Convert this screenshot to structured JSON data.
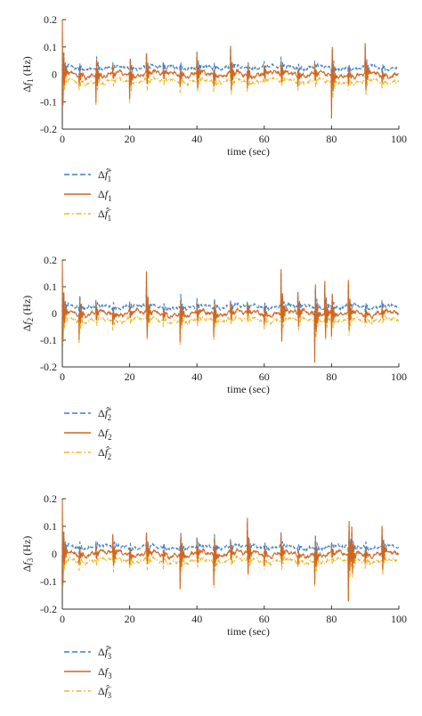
{
  "colors": {
    "upper": "#3f7fc6",
    "mid": "#d0661f",
    "lower": "#f0b522",
    "axis": "#333333"
  },
  "chart_data": [
    {
      "type": "line",
      "xlabel": "time (sec)",
      "ylabel_sub": "1",
      "x_ticks": [
        "0",
        "20",
        "40",
        "60",
        "80",
        "100"
      ],
      "y_ticks": [
        "0.2",
        "0.1",
        "0",
        "-0.1",
        "-0.2"
      ],
      "xlim": [
        0,
        100
      ],
      "ylim": [
        -0.2,
        0.2
      ],
      "grid": false,
      "legend_position": "below",
      "legend": [
        {
          "style": "dashed",
          "color": "upper",
          "sub": "1",
          "sup": "+"
        },
        {
          "style": "solid",
          "color": "mid",
          "sub": "1",
          "sup": ""
        },
        {
          "style": "dashdot",
          "color": "lower",
          "sub": "1",
          "sup": "−"
        }
      ],
      "baselines": {
        "upper": 0.025,
        "mid": 0.0,
        "lower": -0.025
      },
      "events": [
        {
          "t": 0,
          "amp": 0.19
        },
        {
          "t": 5,
          "amp": -0.04
        },
        {
          "t": 10,
          "amp": -0.1
        },
        {
          "t": 15,
          "amp": 0.03
        },
        {
          "t": 20,
          "amp": -0.09
        },
        {
          "t": 25,
          "amp": 0.07
        },
        {
          "t": 30,
          "amp": 0.03
        },
        {
          "t": 35,
          "amp": -0.04
        },
        {
          "t": 40,
          "amp": 0.08
        },
        {
          "t": 45,
          "amp": -0.04
        },
        {
          "t": 50,
          "amp": 0.1
        },
        {
          "t": 55,
          "amp": -0.05
        },
        {
          "t": 60,
          "amp": 0.03
        },
        {
          "t": 65,
          "amp": 0.05
        },
        {
          "t": 70,
          "amp": -0.04
        },
        {
          "t": 75,
          "amp": 0.04
        },
        {
          "t": 80,
          "amp": -0.16
        },
        {
          "t": 85,
          "amp": -0.04
        },
        {
          "t": 90,
          "amp": 0.11
        },
        {
          "t": 95,
          "amp": -0.03
        }
      ]
    },
    {
      "type": "line",
      "xlabel": "time (sec)",
      "ylabel_sub": "2",
      "x_ticks": [
        "0",
        "20",
        "40",
        "60",
        "80",
        "100"
      ],
      "y_ticks": [
        "0.2",
        "0.1",
        "0",
        "-0.1",
        "-0.2"
      ],
      "xlim": [
        0,
        100
      ],
      "ylim": [
        -0.2,
        0.2
      ],
      "grid": false,
      "legend_position": "below",
      "legend": [
        {
          "style": "dashed",
          "color": "upper",
          "sub": "2",
          "sup": "+"
        },
        {
          "style": "solid",
          "color": "mid",
          "sub": "2",
          "sup": ""
        },
        {
          "style": "dashdot",
          "color": "lower",
          "sub": "2",
          "sup": "−"
        }
      ],
      "baselines": {
        "upper": 0.025,
        "mid": 0.0,
        "lower": -0.025
      },
      "events": [
        {
          "t": 0,
          "amp": 0.19
        },
        {
          "t": 5,
          "amp": -0.1
        },
        {
          "t": 10,
          "amp": 0.04
        },
        {
          "t": 15,
          "amp": -0.04
        },
        {
          "t": 20,
          "amp": 0.03
        },
        {
          "t": 25,
          "amp": 0.15
        },
        {
          "t": 30,
          "amp": -0.03
        },
        {
          "t": 35,
          "amp": -0.1
        },
        {
          "t": 40,
          "amp": 0.04
        },
        {
          "t": 45,
          "amp": -0.08
        },
        {
          "t": 50,
          "amp": 0.04
        },
        {
          "t": 55,
          "amp": 0.03
        },
        {
          "t": 60,
          "amp": -0.04
        },
        {
          "t": 65,
          "amp": 0.17
        },
        {
          "t": 70,
          "amp": 0.08
        },
        {
          "t": 75,
          "amp": -0.18
        },
        {
          "t": 78,
          "amp": 0.13
        },
        {
          "t": 80,
          "amp": -0.1
        },
        {
          "t": 85,
          "amp": 0.12
        },
        {
          "t": 90,
          "amp": -0.03
        },
        {
          "t": 95,
          "amp": 0.03
        }
      ]
    },
    {
      "type": "line",
      "xlabel": "time (sec)",
      "ylabel_sub": "3",
      "x_ticks": [
        "0",
        "20",
        "40",
        "60",
        "80",
        "100"
      ],
      "y_ticks": [
        "0.2",
        "0.1",
        "0",
        "-0.1",
        "-0.2"
      ],
      "xlim": [
        0,
        100
      ],
      "ylim": [
        -0.2,
        0.2
      ],
      "grid": false,
      "legend_position": "below",
      "legend": [
        {
          "style": "dashed",
          "color": "upper",
          "sub": "3",
          "sup": "+"
        },
        {
          "style": "solid",
          "color": "mid",
          "sub": "3",
          "sup": ""
        },
        {
          "style": "dashdot",
          "color": "lower",
          "sub": "3",
          "sup": "−"
        }
      ],
      "baselines": {
        "upper": 0.025,
        "mid": 0.0,
        "lower": -0.025
      },
      "events": [
        {
          "t": 0,
          "amp": 0.19
        },
        {
          "t": 5,
          "amp": -0.04
        },
        {
          "t": 10,
          "amp": 0.03
        },
        {
          "t": 15,
          "amp": 0.07
        },
        {
          "t": 20,
          "amp": -0.04
        },
        {
          "t": 25,
          "amp": 0.07
        },
        {
          "t": 30,
          "amp": -0.03
        },
        {
          "t": 35,
          "amp": -0.12
        },
        {
          "t": 40,
          "amp": 0.05
        },
        {
          "t": 45,
          "amp": -0.11
        },
        {
          "t": 50,
          "amp": 0.04
        },
        {
          "t": 55,
          "amp": 0.13
        },
        {
          "t": 60,
          "amp": -0.04
        },
        {
          "t": 65,
          "amp": 0.07
        },
        {
          "t": 70,
          "amp": -0.03
        },
        {
          "t": 75,
          "amp": -0.11
        },
        {
          "t": 80,
          "amp": 0.03
        },
        {
          "t": 85,
          "amp": -0.18
        },
        {
          "t": 86,
          "amp": 0.11
        },
        {
          "t": 90,
          "amp": -0.04
        },
        {
          "t": 95,
          "amp": 0.1
        }
      ]
    }
  ]
}
